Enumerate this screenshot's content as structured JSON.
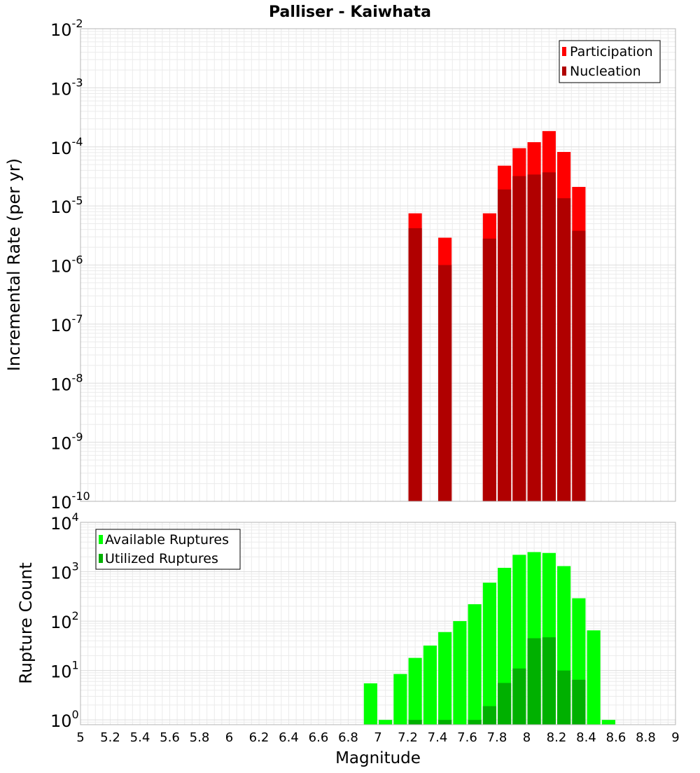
{
  "title": "Palliser - Kaiwhata",
  "xlabel": "Magnitude",
  "x_ticks": [
    "5",
    "5.2",
    "5.4",
    "5.6",
    "5.8",
    "6",
    "6.2",
    "6.4",
    "6.6",
    "6.8",
    "7",
    "7.2",
    "7.4",
    "7.6",
    "7.8",
    "8",
    "8.2",
    "8.4",
    "8.6",
    "8.8",
    "9"
  ],
  "colors": {
    "participation": "#ff0000",
    "nucleation": "#b00000",
    "available": "#00ff00",
    "utilized": "#00b000",
    "grid": "#ebebeb",
    "frame": "#b4b4b4"
  },
  "chart_data": [
    {
      "type": "bar",
      "panel": "top",
      "xlabel": "Magnitude",
      "ylabel": "Incremental Rate (per yr)",
      "xlim": [
        5,
        9
      ],
      "ylim": [
        1e-10,
        0.01
      ],
      "y_scale": "log",
      "y_ticks": [
        {
          "base": "10",
          "exp": "-2"
        },
        {
          "base": "10",
          "exp": "-3"
        },
        {
          "base": "10",
          "exp": "-4"
        },
        {
          "base": "10",
          "exp": "-5"
        },
        {
          "base": "10",
          "exp": "-6"
        },
        {
          "base": "10",
          "exp": "-7"
        },
        {
          "base": "10",
          "exp": "-8"
        },
        {
          "base": "10",
          "exp": "-9"
        },
        {
          "base": "10",
          "exp": "-10"
        }
      ],
      "legend_position": "top-right",
      "x": [
        7.25,
        7.45,
        7.75,
        7.85,
        7.95,
        8.05,
        8.15,
        8.25,
        8.35
      ],
      "series": [
        {
          "name": "Participation",
          "values": [
            7.5e-06,
            2.9e-06,
            7.5e-06,
            4.8e-05,
            9.5e-05,
            0.00012,
            0.000185,
            8.2e-05,
            2.1e-05
          ]
        },
        {
          "name": "Nucleation",
          "values": [
            4.2e-06,
            1e-06,
            2.8e-06,
            1.9e-05,
            3.2e-05,
            3.4e-05,
            3.7e-05,
            1.35e-05,
            3.8e-06
          ]
        }
      ]
    },
    {
      "type": "bar",
      "panel": "bottom",
      "xlabel": "Magnitude",
      "ylabel": "Rupture Count",
      "xlim": [
        5,
        9
      ],
      "ylim": [
        0.8,
        10000
      ],
      "y_scale": "log",
      "y_ticks": [
        {
          "base": "10",
          "exp": "4",
          "value": 10000
        },
        {
          "base": "10",
          "exp": "3",
          "value": 1000
        },
        {
          "base": "10",
          "exp": "2",
          "value": 100
        },
        {
          "base": "10",
          "exp": "1",
          "value": 10
        },
        {
          "base": "10",
          "exp": "0",
          "value": 1
        }
      ],
      "legend_position": "top-left",
      "x": [
        6.95,
        7.05,
        7.15,
        7.25,
        7.35,
        7.45,
        7.55,
        7.65,
        7.75,
        7.85,
        7.95,
        8.05,
        8.15,
        8.25,
        8.35,
        8.45,
        8.55
      ],
      "series": [
        {
          "name": "Available Ruptures",
          "values": [
            5.5,
            1,
            8.5,
            18,
            32,
            60,
            100,
            220,
            600,
            1200,
            2200,
            2500,
            2400,
            1300,
            290,
            65,
            1
          ]
        },
        {
          "name": "Utilized Ruptures",
          "values": [
            null,
            null,
            null,
            1,
            null,
            1,
            null,
            1,
            1.9,
            5.6,
            11,
            45,
            47,
            10,
            6.5,
            null,
            null
          ]
        }
      ]
    }
  ]
}
